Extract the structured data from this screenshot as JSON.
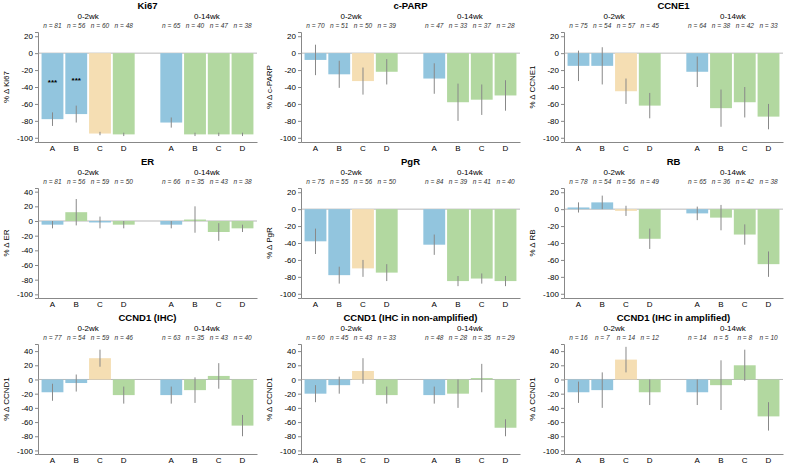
{
  "chart_data": [
    {
      "type": "bar",
      "title": "Ki67",
      "y_label": "% Δ Ki67",
      "categories": [
        "A",
        "B",
        "C",
        "D"
      ],
      "ylim": [
        -105,
        25
      ],
      "yticks": [
        -100,
        -80,
        -60,
        -40,
        -20,
        0,
        20
      ],
      "series": [
        {
          "name": "0-2wk",
          "values": [
            -78,
            -72,
            -95,
            -96
          ],
          "error_low": [
            8,
            10,
            2,
            2
          ],
          "error_high": [
            8,
            10,
            2,
            2
          ],
          "colors": [
            "#92C5DE",
            "#92C5DE",
            "#F5DEB3",
            "#B2D8A0"
          ],
          "n_labels": [
            "n = 81",
            "n = 56",
            "n = 60",
            "n = 48"
          ],
          "stars": [
            "***",
            "***",
            null,
            null
          ]
        },
        {
          "name": "0-14wk",
          "values": [
            -82,
            -96,
            -96,
            -96
          ],
          "error_low": [
            6,
            2,
            2,
            2
          ],
          "error_high": [
            6,
            2,
            2,
            2
          ],
          "colors": [
            "#92C5DE",
            "#B2D8A0",
            "#B2D8A0",
            "#B2D8A0"
          ],
          "n_labels": [
            "n = 65",
            "n = 40",
            "n = 47",
            "n = 38"
          ]
        }
      ]
    },
    {
      "type": "bar",
      "title": "c-PARP",
      "y_label": "% Δ c-PARP",
      "categories": [
        "A",
        "B",
        "C",
        "D"
      ],
      "ylim": [
        -105,
        25
      ],
      "yticks": [
        -100,
        -80,
        -60,
        -40,
        -20,
        0,
        20
      ],
      "series": [
        {
          "name": "0-2wk",
          "values": [
            -8,
            -25,
            -33,
            -22
          ],
          "error_low": [
            18,
            16,
            16,
            15
          ],
          "error_high": [
            18,
            16,
            16,
            15
          ],
          "colors": [
            "#92C5DE",
            "#92C5DE",
            "#F5DEB3",
            "#B2D8A0"
          ],
          "n_labels": [
            "n = 70",
            "n = 51",
            "n = 50",
            "n = 39"
          ]
        },
        {
          "name": "0-14wk",
          "values": [
            -30,
            -58,
            -55,
            -50
          ],
          "error_low": [
            18,
            22,
            18,
            18
          ],
          "error_high": [
            18,
            22,
            18,
            18
          ],
          "colors": [
            "#92C5DE",
            "#B2D8A0",
            "#B2D8A0",
            "#B2D8A0"
          ],
          "n_labels": [
            "n = 47",
            "n = 33",
            "n = 37",
            "n = 28"
          ]
        }
      ]
    },
    {
      "type": "bar",
      "title": "CCNE1",
      "y_label": "% Δ CCNE1",
      "categories": [
        "A",
        "B",
        "C",
        "D"
      ],
      "ylim": [
        -105,
        25
      ],
      "yticks": [
        -100,
        -80,
        -60,
        -40,
        -20,
        0,
        20
      ],
      "series": [
        {
          "name": "0-2wk",
          "values": [
            -15,
            -15,
            -45,
            -62
          ],
          "error_low": [
            18,
            22,
            15,
            15
          ],
          "error_high": [
            18,
            22,
            15,
            15
          ],
          "colors": [
            "#92C5DE",
            "#92C5DE",
            "#F5DEB3",
            "#B2D8A0"
          ],
          "n_labels": [
            "n = 75",
            "n = 54",
            "n = 57",
            "n = 45"
          ]
        },
        {
          "name": "0-14wk",
          "values": [
            -22,
            -65,
            -58,
            -75
          ],
          "error_low": [
            18,
            22,
            18,
            15
          ],
          "error_high": [
            18,
            22,
            18,
            15
          ],
          "colors": [
            "#92C5DE",
            "#B2D8A0",
            "#B2D8A0",
            "#B2D8A0"
          ],
          "n_labels": [
            "n = 64",
            "n = 38",
            "n = 42",
            "n = 33"
          ]
        }
      ]
    },
    {
      "type": "bar",
      "title": "ER",
      "y_label": "% Δ ER",
      "categories": [
        "A",
        "B",
        "C",
        "D"
      ],
      "ylim": [
        -105,
        45
      ],
      "yticks": [
        -100,
        -80,
        -60,
        -40,
        -20,
        0,
        20,
        40
      ],
      "series": [
        {
          "name": "0-2wk",
          "values": [
            -5,
            12,
            -2,
            -5
          ],
          "error_low": [
            5,
            18,
            8,
            5
          ],
          "error_high": [
            5,
            18,
            8,
            5
          ],
          "colors": [
            "#92C5DE",
            "#B2D8A0",
            "#92C5DE",
            "#B2D8A0"
          ],
          "n_labels": [
            "n = 81",
            "n = 56",
            "n = 59",
            "n = 50"
          ]
        },
        {
          "name": "0-14wk",
          "values": [
            -5,
            2,
            -15,
            -10
          ],
          "error_low": [
            5,
            18,
            12,
            5
          ],
          "error_high": [
            5,
            18,
            12,
            5
          ],
          "colors": [
            "#92C5DE",
            "#B2D8A0",
            "#B2D8A0",
            "#B2D8A0"
          ],
          "n_labels": [
            "n = 66",
            "n = 35",
            "n = 43",
            "n = 38"
          ]
        }
      ]
    },
    {
      "type": "bar",
      "title": "PgR",
      "y_label": "% Δ PgR",
      "categories": [
        "A",
        "B",
        "C",
        "D"
      ],
      "ylim": [
        -105,
        25
      ],
      "yticks": [
        -100,
        -80,
        -60,
        -40,
        -20,
        0,
        20
      ],
      "series": [
        {
          "name": "0-2wk",
          "values": [
            -38,
            -78,
            -70,
            -75
          ],
          "error_low": [
            15,
            10,
            10,
            10
          ],
          "error_high": [
            15,
            10,
            10,
            10
          ],
          "colors": [
            "#92C5DE",
            "#92C5DE",
            "#F5DEB3",
            "#B2D8A0"
          ],
          "n_labels": [
            "n = 75",
            "n = 55",
            "n = 56",
            "n = 50"
          ]
        },
        {
          "name": "0-14wk",
          "values": [
            -42,
            -85,
            -82,
            -85
          ],
          "error_low": [
            12,
            6,
            6,
            6
          ],
          "error_high": [
            12,
            6,
            6,
            6
          ],
          "colors": [
            "#92C5DE",
            "#B2D8A0",
            "#B2D8A0",
            "#B2D8A0"
          ],
          "n_labels": [
            "n = 84",
            "n = 39",
            "n = 41",
            "n = 40"
          ]
        }
      ]
    },
    {
      "type": "bar",
      "title": "RB",
      "y_label": "% Δ RB",
      "categories": [
        "A",
        "B",
        "C",
        "D"
      ],
      "ylim": [
        -105,
        25
      ],
      "yticks": [
        -100,
        -80,
        -60,
        -40,
        -20,
        0,
        20
      ],
      "series": [
        {
          "name": "0-2wk",
          "values": [
            2,
            8,
            -2,
            -35
          ],
          "error_low": [
            6,
            8,
            6,
            12
          ],
          "error_high": [
            6,
            8,
            6,
            12
          ],
          "colors": [
            "#92C5DE",
            "#92C5DE",
            "#F5DEB3",
            "#B2D8A0"
          ],
          "n_labels": [
            "n = 78",
            "n = 54",
            "n = 56",
            "n = 49"
          ]
        },
        {
          "name": "0-14wk",
          "values": [
            -5,
            -10,
            -30,
            -65
          ],
          "error_low": [
            8,
            15,
            12,
            15
          ],
          "error_high": [
            8,
            15,
            12,
            15
          ],
          "colors": [
            "#92C5DE",
            "#B2D8A0",
            "#B2D8A0",
            "#B2D8A0"
          ],
          "n_labels": [
            "n = 65",
            "n = 36",
            "n = 42",
            "n = 38"
          ]
        }
      ]
    },
    {
      "type": "bar",
      "title": "CCND1 (IHC)",
      "y_label": "% Δ CCND1",
      "categories": [
        "A",
        "B",
        "C",
        "D"
      ],
      "ylim": [
        -105,
        50
      ],
      "yticks": [
        -100,
        -80,
        -60,
        -40,
        -20,
        0,
        20,
        40
      ],
      "series": [
        {
          "name": "0-2wk",
          "values": [
            -18,
            -5,
            30,
            -22
          ],
          "error_low": [
            12,
            12,
            12,
            12
          ],
          "error_high": [
            12,
            12,
            12,
            12
          ],
          "colors": [
            "#92C5DE",
            "#92C5DE",
            "#F5DEB3",
            "#B2D8A0"
          ],
          "n_labels": [
            "n = 77",
            "n = 54",
            "n = 59",
            "n = 46"
          ]
        },
        {
          "name": "0-14wk",
          "values": [
            -22,
            -15,
            5,
            -65
          ],
          "error_low": [
            12,
            18,
            18,
            15
          ],
          "error_high": [
            12,
            18,
            18,
            15
          ],
          "colors": [
            "#92C5DE",
            "#B2D8A0",
            "#B2D8A0",
            "#B2D8A0"
          ],
          "n_labels": [
            "n = 63",
            "n = 35",
            "n = 43",
            "n = 40"
          ]
        }
      ]
    },
    {
      "type": "bar",
      "title": "CCND1 (IHC in non-amplified)",
      "y_label": "% Δ CCND1",
      "categories": [
        "A",
        "B",
        "C",
        "D"
      ],
      "ylim": [
        -105,
        50
      ],
      "yticks": [
        -100,
        -80,
        -60,
        -40,
        -20,
        0,
        20,
        40
      ],
      "series": [
        {
          "name": "0-2wk",
          "values": [
            -20,
            -8,
            12,
            -22
          ],
          "error_low": [
            12,
            12,
            18,
            12
          ],
          "error_high": [
            12,
            12,
            18,
            12
          ],
          "colors": [
            "#92C5DE",
            "#92C5DE",
            "#F5DEB3",
            "#B2D8A0"
          ],
          "n_labels": [
            "n = 60",
            "n = 45",
            "n = 43",
            "n = 33"
          ]
        },
        {
          "name": "0-14wk",
          "values": [
            -22,
            -20,
            2,
            -68
          ],
          "error_low": [
            12,
            20,
            20,
            12
          ],
          "error_high": [
            12,
            20,
            20,
            12
          ],
          "colors": [
            "#92C5DE",
            "#B2D8A0",
            "#B2D8A0",
            "#B2D8A0"
          ],
          "n_labels": [
            "n = 48",
            "n = 28",
            "n = 35",
            "n = 29"
          ]
        }
      ]
    },
    {
      "type": "bar",
      "title": "CCND1 (IHC in amplified)",
      "y_label": "% Δ CCND1",
      "categories": [
        "A",
        "B",
        "C",
        "D"
      ],
      "ylim": [
        -105,
        50
      ],
      "yticks": [
        -100,
        -80,
        -60,
        -40,
        -20,
        0,
        20,
        40
      ],
      "series": [
        {
          "name": "0-2wk",
          "values": [
            -18,
            -15,
            28,
            -18
          ],
          "error_low": [
            15,
            25,
            18,
            18
          ],
          "error_high": [
            15,
            25,
            18,
            18
          ],
          "colors": [
            "#92C5DE",
            "#92C5DE",
            "#F5DEB3",
            "#B2D8A0"
          ],
          "n_labels": [
            "n = 16",
            "n = 7",
            "n = 14",
            "n = 12"
          ]
        },
        {
          "name": "0-14wk",
          "values": [
            -18,
            -8,
            20,
            -52
          ],
          "error_low": [
            18,
            35,
            22,
            20
          ],
          "error_high": [
            18,
            35,
            22,
            20
          ],
          "colors": [
            "#92C5DE",
            "#B2D8A0",
            "#B2D8A0",
            "#B2D8A0"
          ],
          "n_labels": [
            "n = 14",
            "n = 5",
            "n = 8",
            "n = 10"
          ]
        }
      ]
    }
  ]
}
